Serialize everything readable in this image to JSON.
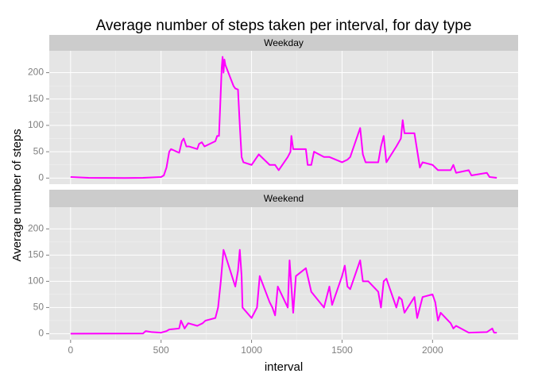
{
  "title": "Average number of steps taken per interval, for day type",
  "xlabel": "interval",
  "ylabel": "Average number of steps",
  "chart_data": [
    {
      "type": "line",
      "facet": "Weekday",
      "x": [
        0,
        100,
        200,
        300,
        400,
        500,
        515,
        530,
        545,
        555,
        600,
        615,
        625,
        640,
        655,
        700,
        710,
        725,
        740,
        800,
        810,
        820,
        830,
        835,
        840,
        845,
        850,
        855,
        900,
        910,
        925,
        935,
        945,
        955,
        1000,
        1030,
        1040,
        1100,
        1130,
        1150,
        1200,
        1215,
        1220,
        1230,
        1245,
        1300,
        1310,
        1330,
        1345,
        1400,
        1430,
        1500,
        1530,
        1545,
        1600,
        1615,
        1630,
        1700,
        1715,
        1730,
        1745,
        1800,
        1825,
        1835,
        1845,
        1900,
        1930,
        1945,
        2000,
        2030,
        2100,
        2115,
        2130,
        2200,
        2215,
        2300,
        2315,
        2355
      ],
      "series": [
        {
          "color": "#FF00FF",
          "values": [
            2,
            0.5,
            0.3,
            0.2,
            0.5,
            2,
            5,
            20,
            50,
            55,
            48,
            70,
            75,
            60,
            60,
            55,
            65,
            68,
            60,
            70,
            80,
            80,
            165,
            210,
            230,
            200,
            225,
            215,
            175,
            170,
            168,
            100,
            40,
            30,
            25,
            40,
            45,
            25,
            25,
            15,
            40,
            50,
            80,
            55,
            55,
            55,
            25,
            25,
            50,
            40,
            40,
            30,
            35,
            40,
            95,
            45,
            30,
            30,
            60,
            80,
            30,
            60,
            75,
            110,
            85,
            85,
            20,
            30,
            25,
            15,
            15,
            25,
            10,
            15,
            5,
            10,
            2,
            0.5
          ]
        }
      ],
      "xlim": [
        -117.75,
        2472.75
      ],
      "ylim": [
        -11.5,
        241.5
      ],
      "xticks": [
        0,
        500,
        1000,
        1500,
        2000
      ],
      "yticks": [
        0,
        50,
        100,
        150,
        200
      ],
      "grid": true
    },
    {
      "type": "line",
      "facet": "Weekend",
      "x": [
        0,
        400,
        415,
        450,
        500,
        530,
        545,
        600,
        610,
        630,
        650,
        700,
        730,
        745,
        800,
        815,
        830,
        845,
        855,
        910,
        925,
        935,
        945,
        950,
        1000,
        1030,
        1045,
        1100,
        1115,
        1130,
        1145,
        1200,
        1210,
        1230,
        1245,
        1300,
        1330,
        1400,
        1430,
        1445,
        1500,
        1515,
        1530,
        1545,
        1600,
        1615,
        1645,
        1700,
        1715,
        1730,
        1745,
        1800,
        1815,
        1830,
        1845,
        1900,
        1915,
        1930,
        1945,
        2000,
        2015,
        2030,
        2045,
        2100,
        2115,
        2130,
        2200,
        2300,
        2330,
        2340,
        2355
      ],
      "series": [
        {
          "color": "#FF00FF",
          "values": [
            0,
            0.5,
            5,
            3,
            2,
            5,
            8,
            10,
            25,
            10,
            20,
            15,
            20,
            25,
            30,
            50,
            100,
            160,
            150,
            90,
            120,
            160,
            110,
            50,
            30,
            50,
            110,
            60,
            50,
            35,
            90,
            50,
            140,
            40,
            110,
            125,
            80,
            50,
            90,
            55,
            110,
            130,
            90,
            85,
            140,
            100,
            100,
            80,
            50,
            100,
            105,
            50,
            70,
            65,
            40,
            70,
            30,
            50,
            70,
            75,
            60,
            25,
            40,
            20,
            10,
            15,
            2,
            3,
            10,
            2,
            2
          ]
        }
      ],
      "xlim": [
        -117.75,
        2472.75
      ],
      "ylim": [
        -11.5,
        241.5
      ],
      "xticks": [
        0,
        500,
        1000,
        1500,
        2000
      ],
      "yticks": [
        0,
        50,
        100,
        150,
        200
      ],
      "grid": true
    }
  ]
}
